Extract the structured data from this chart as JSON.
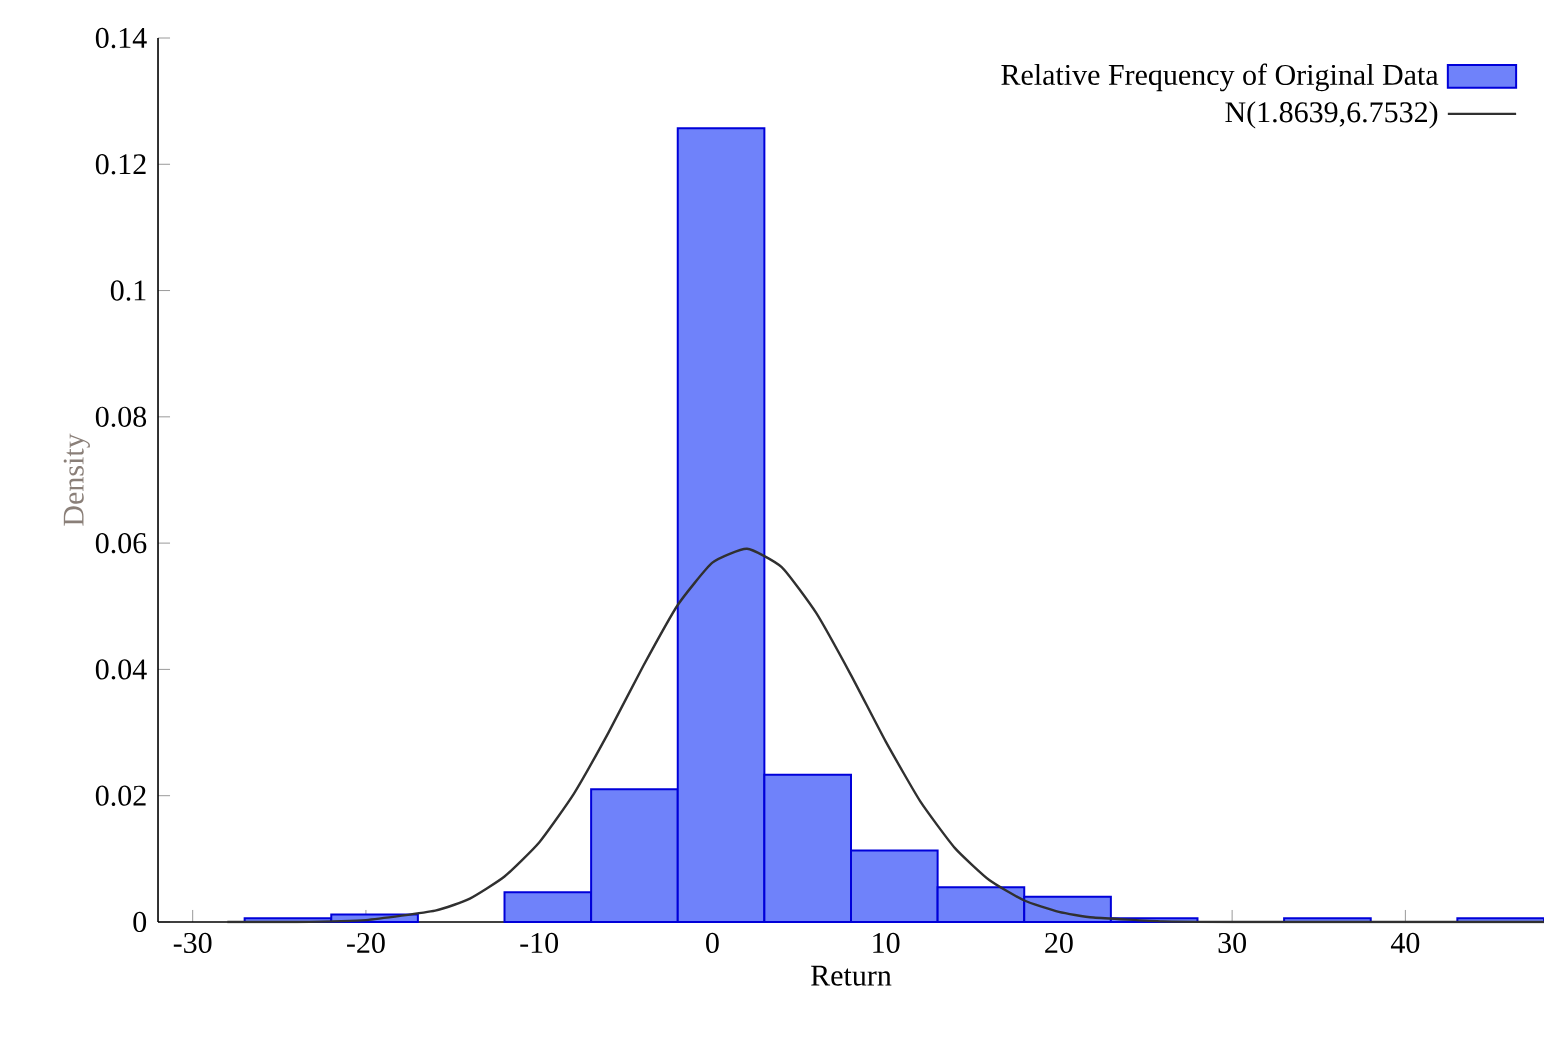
{
  "chart_data": {
    "type": "histogram",
    "xlabel": "Return",
    "ylabel": "Density",
    "series": [
      {
        "name": "Relative Frequency of Original Data",
        "color": "#6f82fa",
        "bins": [
          -27,
          -22,
          -17,
          -12,
          -7,
          -2,
          3,
          8,
          13,
          18,
          23,
          28,
          33,
          38,
          43,
          48
        ],
        "values": [
          0.0006,
          0.0012,
          0,
          0.0047,
          0.021,
          0.1257,
          0.0233,
          0.0113,
          0.0055,
          0.004,
          0.0006,
          0,
          0.0006,
          0,
          0.0006
        ]
      },
      {
        "name": "N(1.8639,6.7532)",
        "type": "line",
        "color": "#303030",
        "x": [
          -28,
          -24,
          -20,
          -16,
          -14,
          -12,
          -10,
          -8,
          -6,
          -4,
          -2,
          0,
          2,
          4,
          6,
          8,
          10,
          12,
          14,
          16,
          18,
          20,
          22,
          26,
          30,
          36,
          44,
          48
        ],
        "values": [
          0,
          0,
          0.0003,
          0.0018,
          0.0037,
          0.0072,
          0.0126,
          0.0203,
          0.03,
          0.0405,
          0.0502,
          0.0569,
          0.0591,
          0.0562,
          0.0489,
          0.0391,
          0.0286,
          0.0191,
          0.0117,
          0.0066,
          0.0034,
          0.0016,
          0.0007,
          0.0001,
          0,
          0,
          0,
          0
        ]
      }
    ],
    "xlim": [
      -32,
      48
    ],
    "ylim": [
      0,
      0.14
    ],
    "xticks": [
      -30,
      -20,
      -10,
      0,
      10,
      20,
      30,
      40
    ],
    "yticks": [
      0,
      0.02,
      0.04,
      0.06,
      0.08,
      0.1,
      0.12,
      0.14
    ],
    "grid": false,
    "legend": "top right",
    "marker": "none"
  }
}
